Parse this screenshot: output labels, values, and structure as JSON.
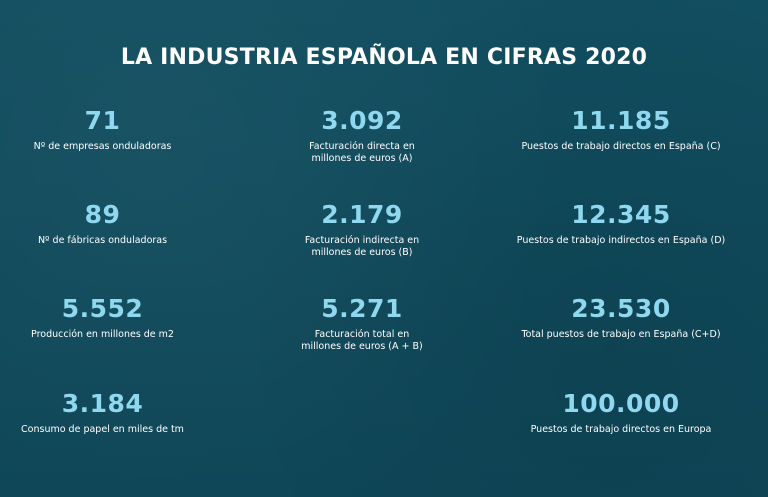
{
  "title": "LA INDUSTRIA ESPAÑOLA EN CIFRAS 2020",
  "colors": {
    "background": "#0f4a5b",
    "value": "#8fd8ef",
    "text": "#ffffff"
  },
  "stats": {
    "empresas": {
      "value": "71",
      "label": "Nº de empresas onduladoras"
    },
    "facturacion_directa": {
      "value": "3.092",
      "label": "Facturación directa en\nmillones de euros (A)"
    },
    "puestos_directos_es": {
      "value": "11.185",
      "label": "Puestos de trabajo directos en España (C)"
    },
    "fabricas": {
      "value": "89",
      "label": "Nº de fábricas onduladoras"
    },
    "facturacion_indirecta": {
      "value": "2.179",
      "label": "Facturación indirecta en\nmillones de euros (B)"
    },
    "puestos_indirectos_es": {
      "value": "12.345",
      "label": "Puestos de trabajo indirectos en España (D)"
    },
    "produccion": {
      "value": "5.552",
      "label": "Producción en millones de m2"
    },
    "facturacion_total": {
      "value": "5.271",
      "label": "Facturación total en\nmillones de euros (A + B)"
    },
    "puestos_total_es": {
      "value": "23.530",
      "label": "Total puestos de trabajo en España (C+D)"
    },
    "consumo_papel": {
      "value": "3.184",
      "label": "Consumo de papel en miles de tm"
    },
    "puestos_europa": {
      "value": "100.000",
      "label": "Puestos de trabajo directos en Europa"
    }
  }
}
